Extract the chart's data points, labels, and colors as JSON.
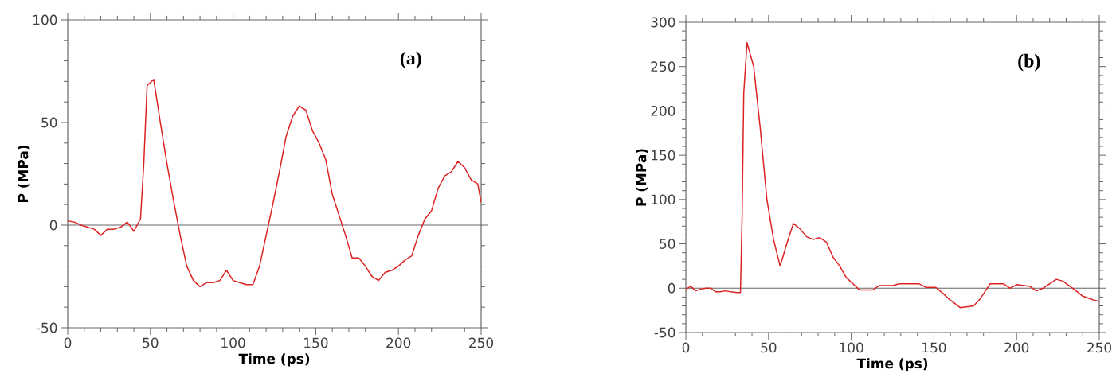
{
  "chart_data": [
    {
      "type": "line",
      "xlabel": "Time (ps)",
      "ylabel": "P (MPa)",
      "annotations": [
        "(a)"
      ],
      "xlim": [
        0,
        250
      ],
      "ylim": [
        -50,
        100
      ],
      "xticks": [
        0,
        50,
        100,
        150,
        200,
        250
      ],
      "yticks": [
        -50,
        0,
        50,
        100
      ],
      "ref_lines": [
        {
          "axis": "y",
          "value": 0,
          "color": "#666666"
        }
      ],
      "x": [
        0,
        4,
        8,
        12,
        16,
        20,
        24,
        28,
        32,
        36,
        40,
        44,
        46,
        48,
        52,
        56,
        60,
        64,
        68,
        72,
        76,
        80,
        84,
        88,
        92,
        96,
        100,
        104,
        108,
        112,
        116,
        120,
        124,
        128,
        132,
        136,
        140,
        144,
        148,
        152,
        156,
        160,
        164,
        168,
        172,
        176,
        180,
        184,
        188,
        192,
        196,
        200,
        204,
        208,
        212,
        216,
        220,
        224,
        228,
        232,
        236,
        240,
        244,
        248,
        250
      ],
      "series": [
        {
          "color": "#dd2222",
          "values": [
            2,
            1.5,
            0,
            -1,
            -2,
            -5,
            -2,
            -2,
            -1,
            1.5,
            -3,
            3,
            30,
            68,
            71,
            50,
            30,
            12,
            -5,
            -20,
            -27,
            -30,
            -28,
            -28,
            -27,
            -22,
            -27,
            -28,
            -29,
            -29,
            -20,
            -5,
            10,
            26,
            43,
            53,
            58,
            56,
            46,
            40,
            32,
            15,
            5,
            -5,
            -16,
            -16,
            -20,
            -25,
            -27,
            -23,
            -22,
            -20,
            -17,
            -15,
            -5,
            3,
            7,
            18,
            24,
            26,
            31,
            28,
            22,
            20,
            11
          ]
        }
      ]
    },
    {
      "type": "line",
      "xlabel": "Time (ps)",
      "ylabel": "P (MPa)",
      "annotations": [
        "(b)"
      ],
      "xlim": [
        0,
        250
      ],
      "ylim": [
        -50,
        300
      ],
      "xticks": [
        0,
        50,
        100,
        150,
        200,
        250
      ],
      "yticks": [
        -50,
        0,
        50,
        100,
        150,
        200,
        250,
        300
      ],
      "ref_lines": [
        {
          "axis": "y",
          "value": 0,
          "color": "#666666"
        }
      ],
      "x": [
        0,
        3,
        6,
        9,
        12,
        15,
        18,
        21,
        24,
        27,
        31,
        33,
        34,
        35,
        37,
        41,
        45,
        49,
        53,
        57,
        61,
        65,
        69,
        73,
        77,
        81,
        85,
        89,
        93,
        97,
        101,
        105,
        113,
        117,
        125,
        129,
        141,
        145,
        151,
        155,
        159,
        166,
        174,
        178,
        184,
        192,
        196,
        200,
        208,
        212,
        216,
        224,
        228,
        236,
        240,
        246,
        250
      ],
      "series": [
        {
          "color": "#dd2222",
          "values": [
            -1,
            2,
            -3,
            -1,
            0,
            0,
            -4,
            -4,
            -3,
            -4,
            -5,
            -5,
            80,
            220,
            277,
            250,
            180,
            100,
            55,
            25,
            50,
            73,
            67,
            58,
            55,
            57,
            52,
            35,
            25,
            12,
            5,
            -2,
            -2,
            3,
            3,
            5,
            5,
            1,
            1,
            -5,
            -12,
            -22,
            -20,
            -12,
            5,
            5,
            0,
            4,
            2,
            -3,
            0,
            10,
            8,
            -3,
            -9,
            -13,
            -15
          ]
        }
      ]
    }
  ]
}
